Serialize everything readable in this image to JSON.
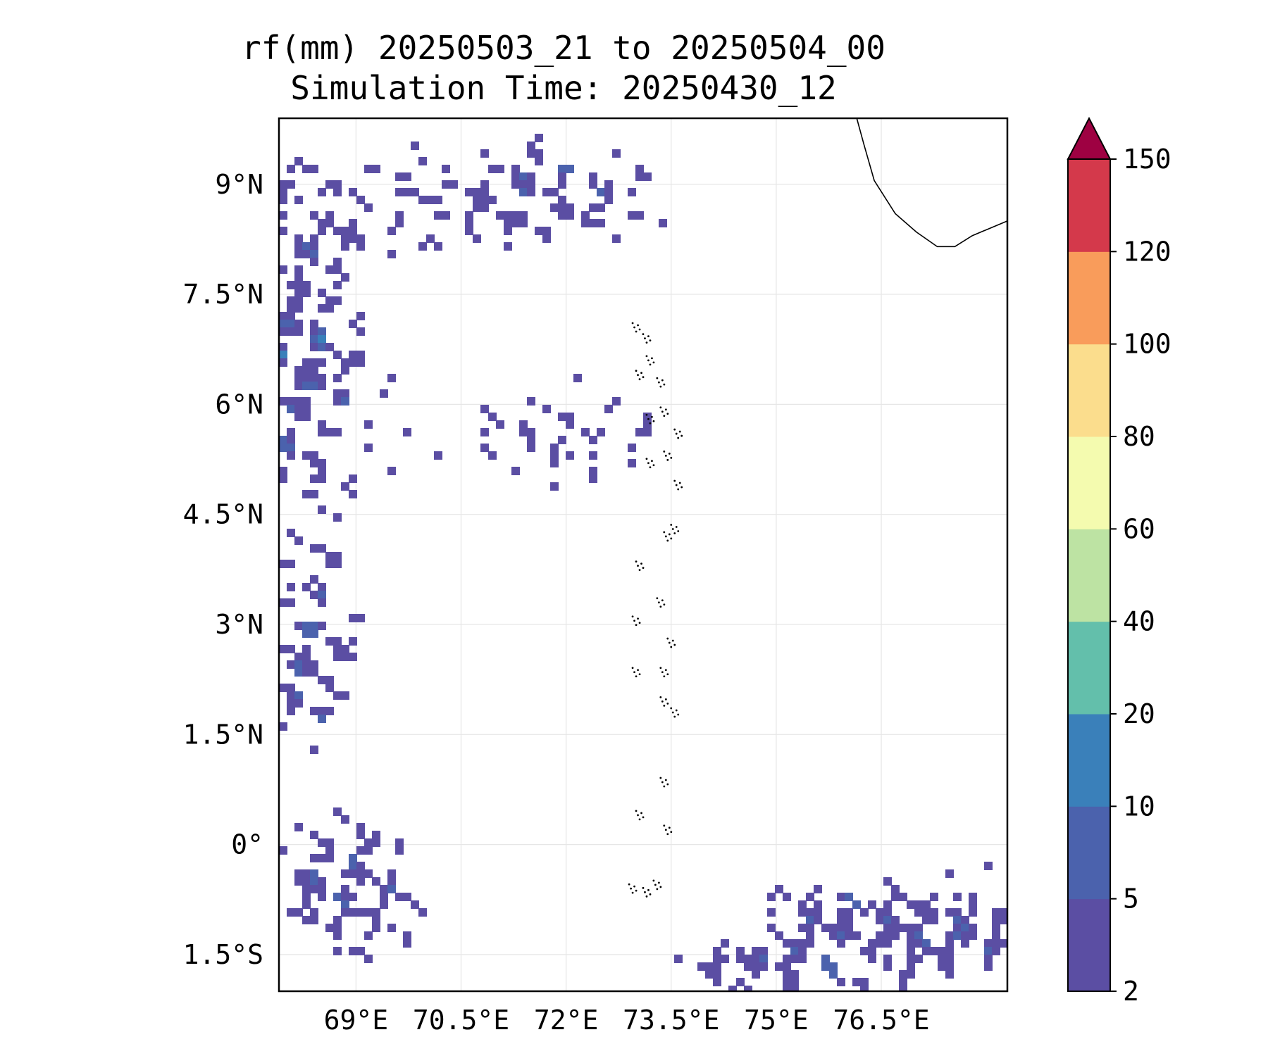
{
  "title": {
    "line1": "rf(mm) 20250503_21 to 20250504_00",
    "line2": "Simulation Time: 20250430_12"
  },
  "map": {
    "type": "filled-contour precipitation map",
    "variable": "rf(mm)",
    "lon_range": [
      67.9,
      78.3
    ],
    "lat_range": [
      -2.0,
      9.9
    ],
    "lon_ticks": [
      {
        "value": 69.0,
        "label": "69°E"
      },
      {
        "value": 70.5,
        "label": "70.5°E"
      },
      {
        "value": 72.0,
        "label": "72°E"
      },
      {
        "value": 73.5,
        "label": "73.5°E"
      },
      {
        "value": 75.0,
        "label": "75°E"
      },
      {
        "value": 76.5,
        "label": "76.5°E"
      }
    ],
    "lat_ticks": [
      {
        "value": 9.0,
        "label": "9°N"
      },
      {
        "value": 7.5,
        "label": "7.5°N"
      },
      {
        "value": 6.0,
        "label": "6°N"
      },
      {
        "value": 4.5,
        "label": "4.5°N"
      },
      {
        "value": 3.0,
        "label": "3°N"
      },
      {
        "value": 1.5,
        "label": "1.5°N"
      },
      {
        "value": 0.0,
        "label": "0°"
      },
      {
        "value": -1.5,
        "label": "1.5°S"
      }
    ],
    "grid": true,
    "features": [
      "coastline (southern India)",
      "Maldives atolls",
      "Lakshadweep islands"
    ]
  },
  "colorbar": {
    "levels": [
      2,
      5,
      10,
      20,
      40,
      60,
      80,
      100,
      120,
      150
    ],
    "tick_labels": [
      "2",
      "5",
      "10",
      "20",
      "40",
      "60",
      "80",
      "100",
      "120",
      "150"
    ],
    "colors": [
      "#5b4ea3",
      "#4b62ad",
      "#3a80ba",
      "#63bfab",
      "#bde3a3",
      "#f4fbaf",
      "#fbdd8d",
      "#f99c5b",
      "#d4394b"
    ],
    "extend_color": "#9e0142",
    "extend": "max"
  }
}
